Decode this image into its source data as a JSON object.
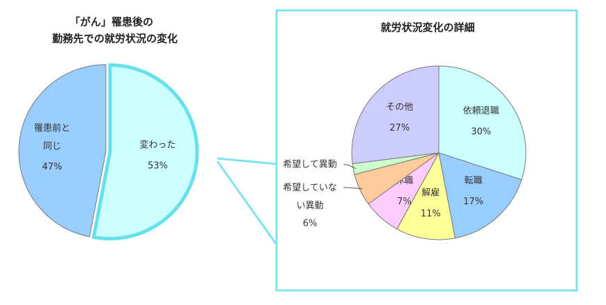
{
  "chart_data": [
    {
      "type": "pie",
      "title": "「がん」罹患後の",
      "subtitle": "勤務先での就労状況の変化",
      "categories": [
        "罹患前と同じ",
        "変わった"
      ],
      "values": [
        47,
        53
      ],
      "value_labels": [
        "47%",
        "53%"
      ],
      "colors": [
        "#99ccff",
        "#ccffff"
      ],
      "highlight_color": "#66e0ea"
    },
    {
      "type": "pie",
      "title": "就労状況変化の詳細",
      "categories": [
        "依頼退職",
        "転職",
        "解雇",
        "休職",
        "希望していない異動",
        "希望して異動",
        "その他"
      ],
      "values": [
        30,
        17,
        11,
        7,
        6,
        2,
        27
      ],
      "value_labels": [
        "30%",
        "17%",
        "11%",
        "7%",
        "6%",
        null,
        "27%"
      ],
      "colors": [
        "#ccffff",
        "#99ccff",
        "#ffff99",
        "#ffccff",
        "#ffcc99",
        "#ccffcc",
        "#ccccff"
      ]
    }
  ]
}
